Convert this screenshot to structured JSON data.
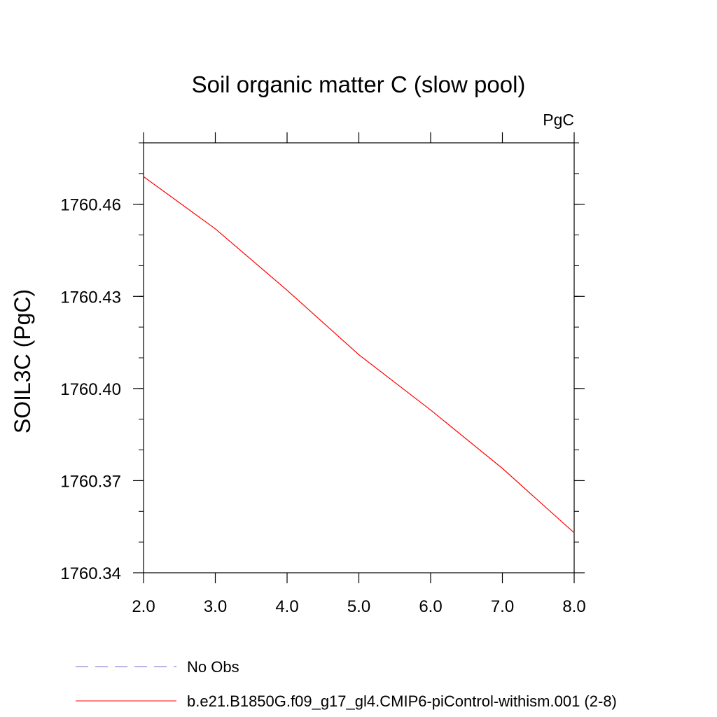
{
  "chart_data": {
    "type": "line",
    "title": "Soil organic matter C (slow pool)",
    "units_label": "PgC",
    "xlabel": "",
    "ylabel": "SOIL3C  (PgC)",
    "xlim": [
      2.0,
      8.0
    ],
    "ylim": [
      1760.34,
      1760.48
    ],
    "x_ticks": [
      "2.0",
      "3.0",
      "4.0",
      "5.0",
      "6.0",
      "7.0",
      "8.0"
    ],
    "y_ticks": [
      "1760.46",
      "1760.43",
      "1760.40",
      "1760.37",
      "1760.34"
    ],
    "grid": false,
    "series": [
      {
        "name": "b.e21.B1850G.f09_g17_gl4.CMIP6-piControl-withism.001 (2-8)",
        "color": "#ff0000",
        "x": [
          2.0,
          3.0,
          4.0,
          5.0,
          6.0,
          7.0,
          8.0
        ],
        "y": [
          1760.469,
          1760.452,
          1760.432,
          1760.411,
          1760.393,
          1760.374,
          1760.353
        ]
      }
    ],
    "legend": [
      {
        "label": "No Obs",
        "color": "#7b68c8",
        "style": "dashed"
      },
      {
        "label": "b.e21.B1850G.f09_g17_gl4.CMIP6-piControl-withism.001 (2-8)",
        "color": "#ff0000",
        "style": "solid"
      }
    ],
    "legend_placement": "bottom"
  }
}
